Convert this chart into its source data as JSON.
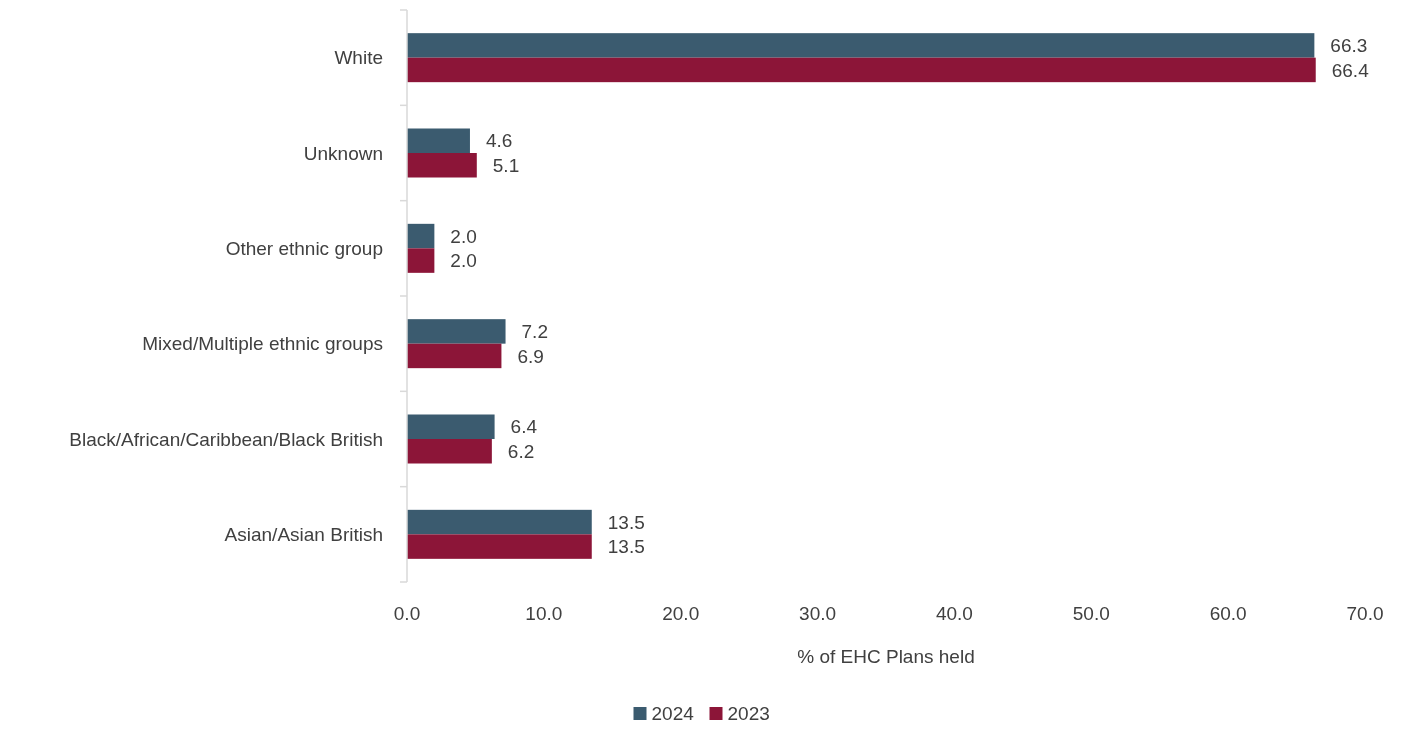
{
  "chart_data": {
    "type": "bar",
    "orientation": "horizontal",
    "xlabel": "% of EHC Plans held",
    "categories": [
      "White",
      "Unknown",
      "Other ethnic group",
      "Mixed/Multiple ethnic groups",
      "Black/African/Caribbean/Black British",
      "Asian/Asian British"
    ],
    "series": [
      {
        "name": "2024",
        "color": "#3b5b6f",
        "values": [
          66.3,
          4.6,
          2.0,
          7.2,
          6.4,
          13.5
        ],
        "value_labels": [
          "66.3",
          "4.6",
          "2.0",
          "7.2",
          "6.4",
          "13.5"
        ]
      },
      {
        "name": "2023",
        "color": "#8c1538",
        "values": [
          66.4,
          5.1,
          2.0,
          6.9,
          6.2,
          13.5
        ],
        "value_labels": [
          "66.4",
          "5.1",
          "2.0",
          "6.9",
          "6.2",
          "13.5"
        ]
      }
    ],
    "xlim": [
      0,
      70
    ],
    "xticks": [
      {
        "value": 0,
        "label": "0.0"
      },
      {
        "value": 10,
        "label": "10.0"
      },
      {
        "value": 20,
        "label": "20.0"
      },
      {
        "value": 30,
        "label": "30.0"
      },
      {
        "value": 40,
        "label": "40.0"
      },
      {
        "value": 50,
        "label": "50.0"
      },
      {
        "value": 60,
        "label": "60.0"
      },
      {
        "value": 70,
        "label": "70.0"
      }
    ],
    "legend": "bottom"
  }
}
